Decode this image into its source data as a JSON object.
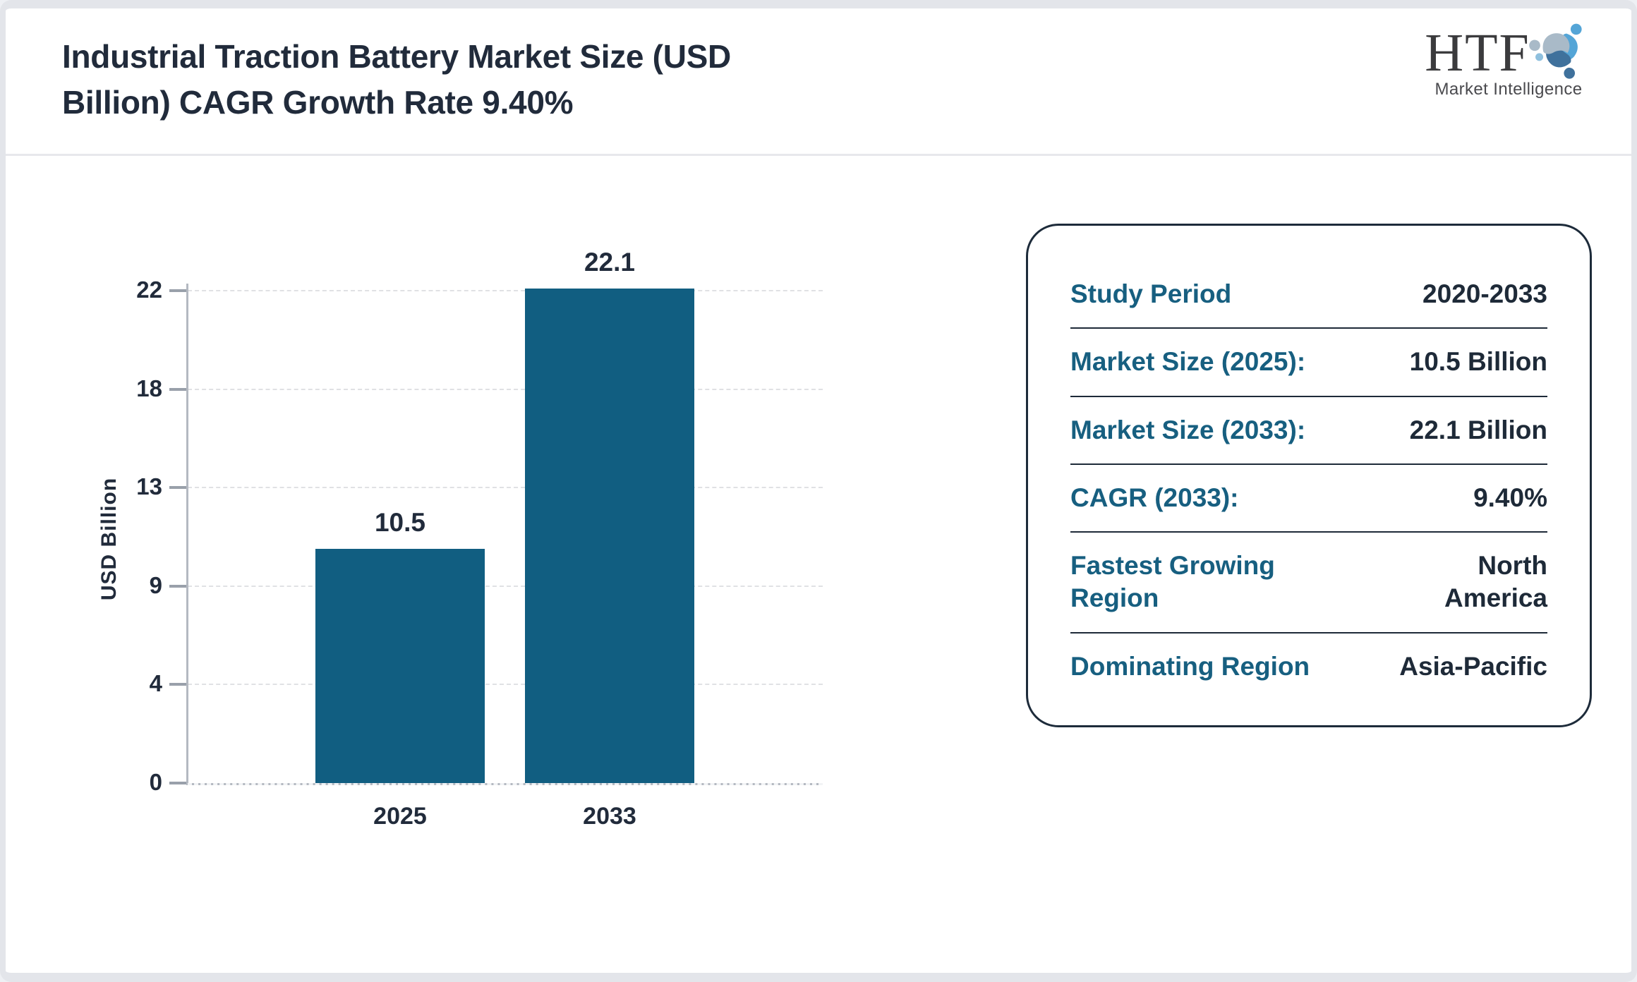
{
  "header": {
    "title": "Industrial Traction Battery Market Size (USD Billion) CAGR Growth Rate 9.40%"
  },
  "logo": {
    "text": "HTF",
    "tagline": "Market Intelligence"
  },
  "chart_data": {
    "type": "bar",
    "title": "Industrial Traction Battery Market Size (USD Billion) CAGR Growth Rate 9.40%",
    "categories": [
      "2025",
      "2033"
    ],
    "values": [
      10.5,
      22.1
    ],
    "value_labels": [
      "10.5",
      "22.1"
    ],
    "xlabel": "",
    "ylabel": "USD Billion",
    "yticks": [
      0,
      4,
      9,
      13,
      18,
      22
    ],
    "ylim": [
      0,
      22.5
    ],
    "grid": true,
    "legend": false,
    "bar_color": "#115e81"
  },
  "panel": {
    "rows": [
      {
        "label": "Study Period",
        "value": "2020-2033"
      },
      {
        "label": "Market Size (2025):",
        "value": "10.5 Billion"
      },
      {
        "label": "Market Size (2033):",
        "value": "22.1 Billion"
      },
      {
        "label": "CAGR (2033):",
        "value": "9.40%"
      },
      {
        "label": "Fastest Growing\nRegion",
        "value": "North\nAmerica"
      },
      {
        "label": "Dominating Region",
        "value": "Asia-Pacific"
      }
    ]
  },
  "colors": {
    "bar": "#115e81",
    "panel_label": "#175f80",
    "value_text": "#1e2a38",
    "title_text": "#212b3b",
    "axis": "#b4b9c1",
    "grid": "#e0e1e4",
    "logo_bright_blue": "#54a5d7",
    "logo_steel_blue": "#3f719c",
    "logo_gray_blue": "#a9bac8"
  }
}
